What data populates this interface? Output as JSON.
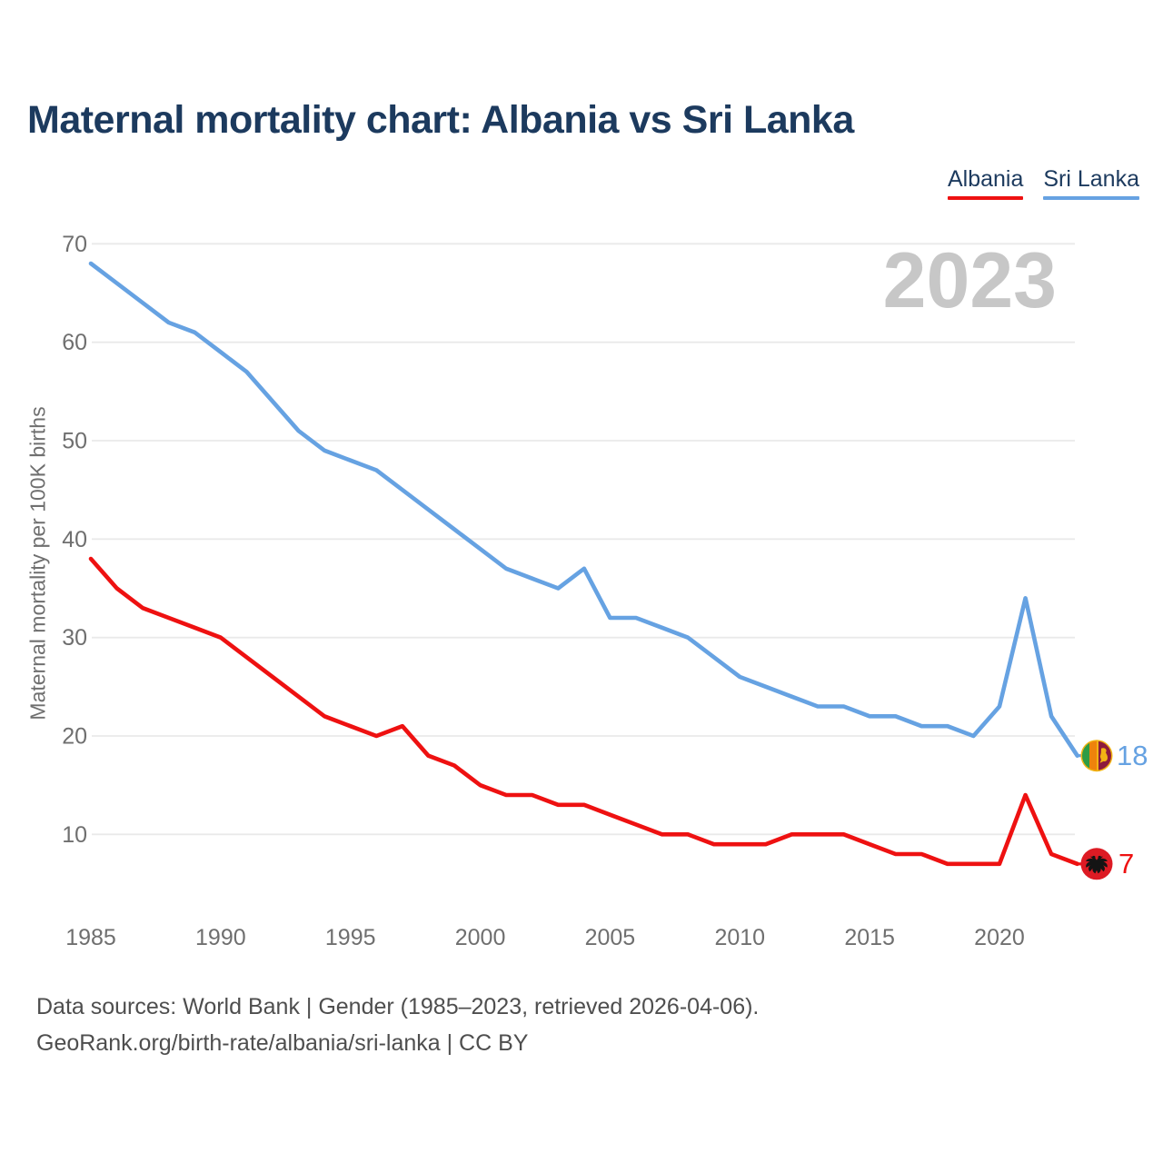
{
  "title": "Maternal mortality chart: Albania vs Sri Lanka",
  "watermark_year": "2023",
  "legend": {
    "items": [
      {
        "label": "Albania",
        "color": "#ee1111"
      },
      {
        "label": "Sri Lanka",
        "color": "#66a2e2"
      }
    ]
  },
  "end_labels": {
    "sri_lanka": {
      "value": "18"
    },
    "albania": {
      "value": "7"
    }
  },
  "footer": {
    "line1": "Data sources: World Bank | Gender (1985–2023, retrieved 2026-04-06).",
    "line2": "GeoRank.org/birth-rate/albania/sri-lanka | CC BY"
  },
  "chart_data": {
    "type": "line",
    "title": "Maternal mortality chart: Albania vs Sri Lanka",
    "xlabel": "",
    "ylabel": "Maternal mortality per 100K births",
    "xlim": [
      1985,
      2023
    ],
    "ylim": [
      4,
      72
    ],
    "xticks": [
      1985,
      1990,
      1995,
      2000,
      2005,
      2010,
      2015,
      2020
    ],
    "yticks": [
      10,
      20,
      30,
      40,
      50,
      60,
      70
    ],
    "grid": "horizontal",
    "legend_position": "top-right",
    "x": [
      1985,
      1986,
      1987,
      1988,
      1989,
      1990,
      1991,
      1992,
      1993,
      1994,
      1995,
      1996,
      1997,
      1998,
      1999,
      2000,
      2001,
      2002,
      2003,
      2004,
      2005,
      2006,
      2007,
      2008,
      2009,
      2010,
      2011,
      2012,
      2013,
      2014,
      2015,
      2016,
      2017,
      2018,
      2019,
      2020,
      2021,
      2022,
      2023
    ],
    "series": [
      {
        "name": "Albania",
        "color": "#ee1111",
        "values": [
          38,
          35,
          33,
          32,
          31,
          30,
          28,
          26,
          24,
          22,
          21,
          20,
          21,
          18,
          17,
          15,
          14,
          14,
          13,
          13,
          12,
          11,
          10,
          10,
          9,
          9,
          9,
          10,
          10,
          10,
          9,
          8,
          8,
          7,
          7,
          7,
          14,
          8,
          7
        ]
      },
      {
        "name": "Sri Lanka",
        "color": "#66a2e2",
        "values": [
          68,
          66,
          64,
          62,
          61,
          59,
          57,
          54,
          51,
          49,
          48,
          47,
          45,
          43,
          41,
          39,
          37,
          36,
          35,
          37,
          32,
          32,
          31,
          30,
          28,
          26,
          25,
          24,
          23,
          23,
          22,
          22,
          21,
          21,
          20,
          23,
          34,
          22,
          18
        ]
      }
    ]
  }
}
